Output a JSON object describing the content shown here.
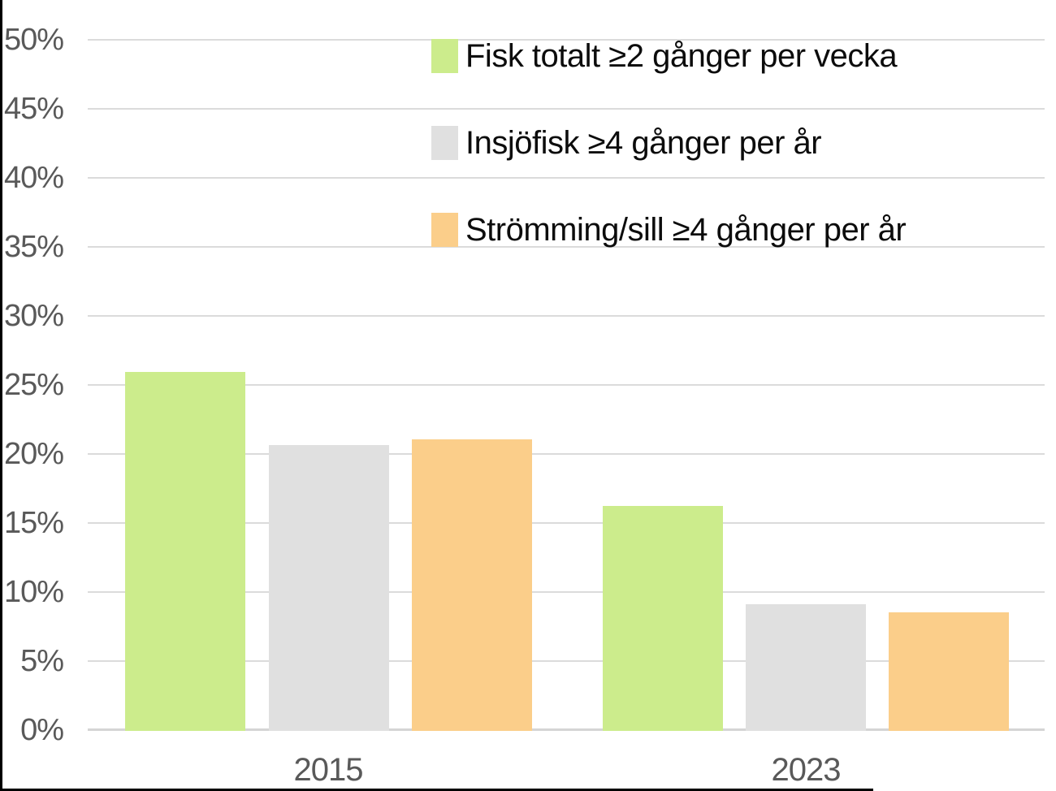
{
  "chart_data": {
    "type": "bar",
    "title": "",
    "categories": [
      "2015",
      "2023"
    ],
    "series": [
      {
        "name": "Fisk totalt ≥2 gånger per vecka",
        "color": "#CCEC8C",
        "values": [
          26.0,
          16.3
        ]
      },
      {
        "name": "Insjöfisk ≥4 gånger per år",
        "color": "#E0E0E0",
        "values": [
          20.7,
          9.2
        ]
      },
      {
        "name": "Strömming/sill ≥4 gånger per år",
        "color": "#FBCE8A",
        "values": [
          21.1,
          8.6
        ]
      }
    ],
    "xlabel": "",
    "ylabel": "",
    "ylim": [
      0,
      50
    ],
    "ytick_step": 5,
    "yticks": [
      "0%",
      "5%",
      "10%",
      "15%",
      "20%",
      "25%",
      "30%",
      "35%",
      "40%",
      "45%",
      "50%"
    ],
    "grid": true,
    "legend_position": "top-right",
    "colors": {
      "axis_text": "#595959",
      "gridline": "#DBDBDB",
      "legend_text": "#0c0c0c",
      "frame_border": "#000000"
    }
  }
}
